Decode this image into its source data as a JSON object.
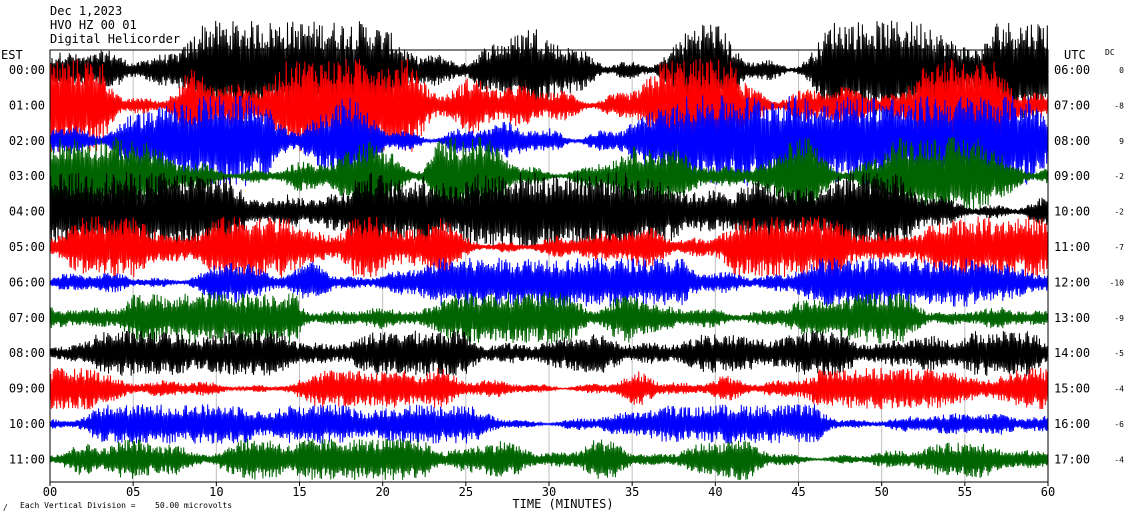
{
  "header": {
    "line1": "Dec 1,2023",
    "line2": "HVO HZ 00 01",
    "line3": "Digital Helicorder"
  },
  "left_timezone": "EST",
  "right_timezone": "UTC",
  "dc_label": "DC",
  "footer": {
    "scale_note": "Each Vertical Division =",
    "scale_value": "50.00 microvolts"
  },
  "colors": [
    "#000000",
    "#ff0000",
    "#0000ff",
    "#006400"
  ],
  "chart_data": {
    "type": "line",
    "title": "Dec 1,2023",
    "xlabel": "TIME (MINUTES)",
    "ylabel": "",
    "xlim": [
      0,
      60
    ],
    "x_ticks": [
      "00",
      "05",
      "10",
      "15",
      "20",
      "25",
      "30",
      "35",
      "40",
      "45",
      "50",
      "55",
      "60"
    ],
    "grid": true,
    "rows": [
      {
        "est": "00:00",
        "utc": "06:00",
        "dc": "0",
        "color": "#000000",
        "amplitude": 1.0
      },
      {
        "est": "01:00",
        "utc": "07:00",
        "dc": "-8",
        "color": "#ff0000",
        "amplitude": 0.95
      },
      {
        "est": "02:00",
        "utc": "08:00",
        "dc": "9",
        "color": "#0000ff",
        "amplitude": 0.92
      },
      {
        "est": "03:00",
        "utc": "09:00",
        "dc": "-2",
        "color": "#006400",
        "amplitude": 0.8
      },
      {
        "est": "04:00",
        "utc": "10:00",
        "dc": "-2",
        "color": "#000000",
        "amplitude": 0.8
      },
      {
        "est": "05:00",
        "utc": "11:00",
        "dc": "-7",
        "color": "#ff0000",
        "amplitude": 0.62
      },
      {
        "est": "06:00",
        "utc": "12:00",
        "dc": "-10",
        "color": "#0000ff",
        "amplitude": 0.5
      },
      {
        "est": "07:00",
        "utc": "13:00",
        "dc": "-9",
        "color": "#006400",
        "amplitude": 0.52
      },
      {
        "est": "08:00",
        "utc": "14:00",
        "dc": "-5",
        "color": "#000000",
        "amplitude": 0.46
      },
      {
        "est": "09:00",
        "utc": "15:00",
        "dc": "-4",
        "color": "#ff0000",
        "amplitude": 0.42
      },
      {
        "est": "10:00",
        "utc": "16:00",
        "dc": "-6",
        "color": "#0000ff",
        "amplitude": 0.4
      },
      {
        "est": "11:00",
        "utc": "17:00",
        "dc": "-4",
        "color": "#006400",
        "amplitude": 0.42
      }
    ]
  }
}
